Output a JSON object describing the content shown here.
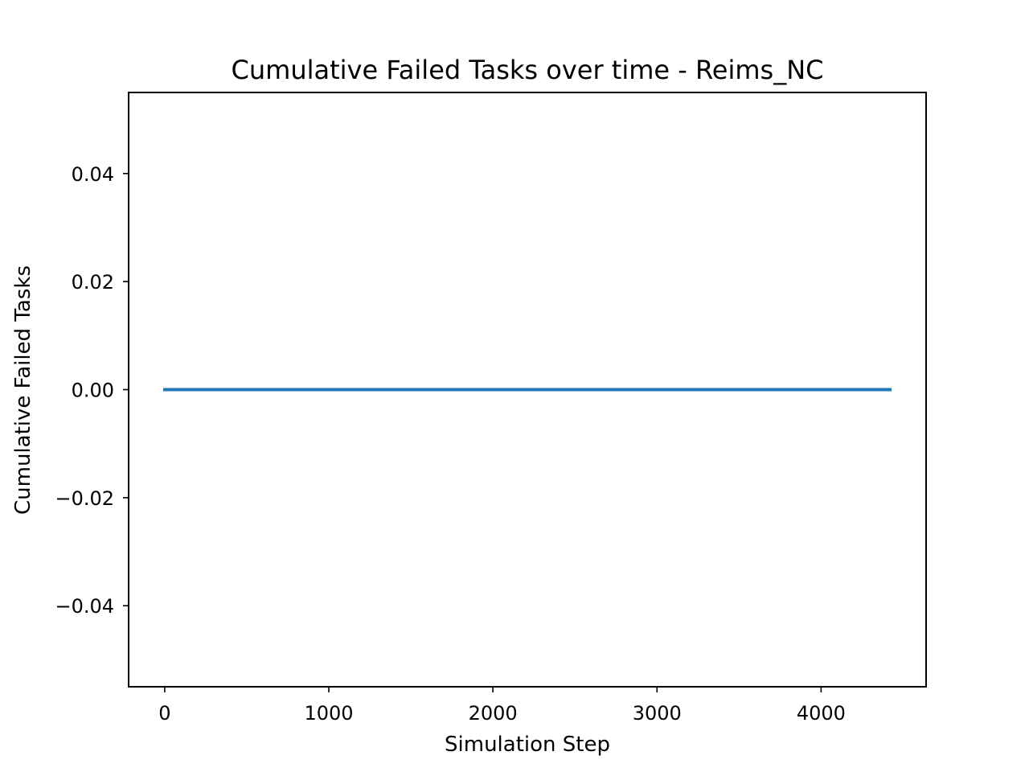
{
  "chart_data": {
    "type": "line",
    "title": "Cumulative Failed Tasks over time - Reims_NC",
    "xlabel": "Simulation Step",
    "ylabel": "Cumulative Failed Tasks",
    "xlim": [
      -220,
      4640
    ],
    "ylim": [
      -0.055,
      0.055
    ],
    "xticks": [
      0,
      1000,
      2000,
      3000,
      4000
    ],
    "xtick_labels": [
      "0",
      "1000",
      "2000",
      "3000",
      "4000"
    ],
    "yticks": [
      0.04,
      0.02,
      0.0,
      -0.02,
      -0.04
    ],
    "ytick_labels": [
      "0.04",
      "0.02",
      "0.00",
      "−0.02",
      "−0.04"
    ],
    "grid": false,
    "series": [
      {
        "color": "#1f77b4",
        "x": [
          0,
          4420
        ],
        "y": [
          0,
          0
        ]
      }
    ]
  }
}
